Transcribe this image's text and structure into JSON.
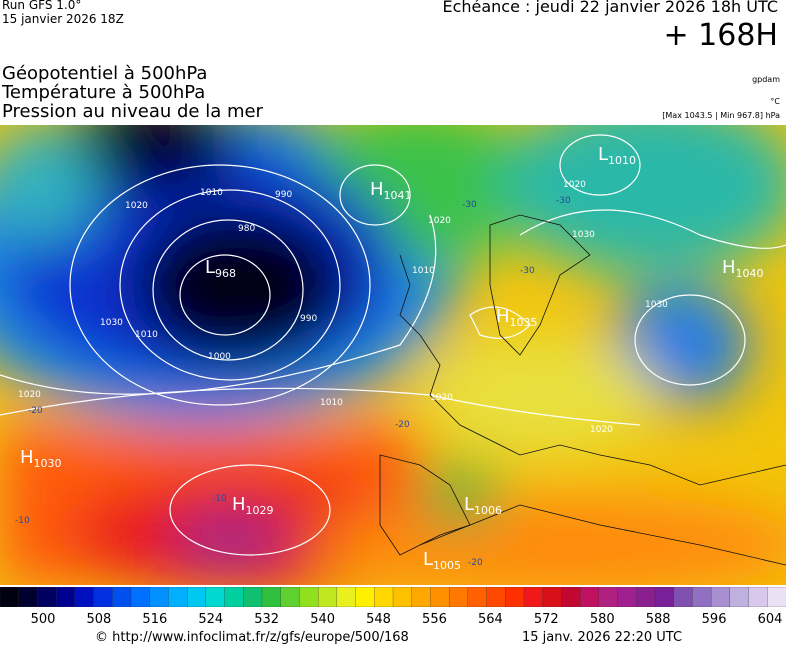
{
  "header": {
    "run": "Run GFS 1.0°",
    "run_date": "15 janvier 2026 18Z",
    "valid": "Echéance : jeudi 22 janvier 2026 18h UTC",
    "lead": "+ 168H",
    "fields": [
      "Géopotentiel à 500hPa",
      "Température à 500hPa",
      "Pression au niveau de la mer"
    ],
    "units": [
      "gpdam",
      "°C",
      "[Max 1043.5 | Min 967.8] hPa"
    ]
  },
  "map": {
    "centers": [
      {
        "letter": "L",
        "value": "968"
      },
      {
        "letter": "H",
        "value": "1041"
      },
      {
        "letter": "L",
        "value": "1010"
      },
      {
        "letter": "H",
        "value": "1040"
      },
      {
        "letter": "H",
        "value": "1035"
      },
      {
        "letter": "H",
        "value": "1030"
      },
      {
        "letter": "H",
        "value": "1029"
      },
      {
        "letter": "L",
        "value": "1006"
      },
      {
        "letter": "L",
        "value": "1005"
      }
    ],
    "isobar_labels": [
      "1020",
      "1010",
      "990",
      "980",
      "1030",
      "1010",
      "1000",
      "990",
      "1010",
      "1020",
      "1020",
      "1030",
      "1030",
      "1020",
      "1020",
      "1010",
      "1020"
    ],
    "temperature_labels": [
      "-30",
      "-30",
      "-30",
      "-20",
      "-20",
      "-10",
      "-10",
      "-20"
    ]
  },
  "colorbar": {
    "labels": [
      "500",
      "508",
      "516",
      "524",
      "532",
      "540",
      "548",
      "556",
      "564",
      "572",
      "580",
      "588",
      "596",
      "604"
    ]
  },
  "footer": {
    "source": "© http://www.infoclimat.fr/z/gfs/europe/500/168",
    "generated": "15 janv. 2026 22:20 UTC"
  }
}
